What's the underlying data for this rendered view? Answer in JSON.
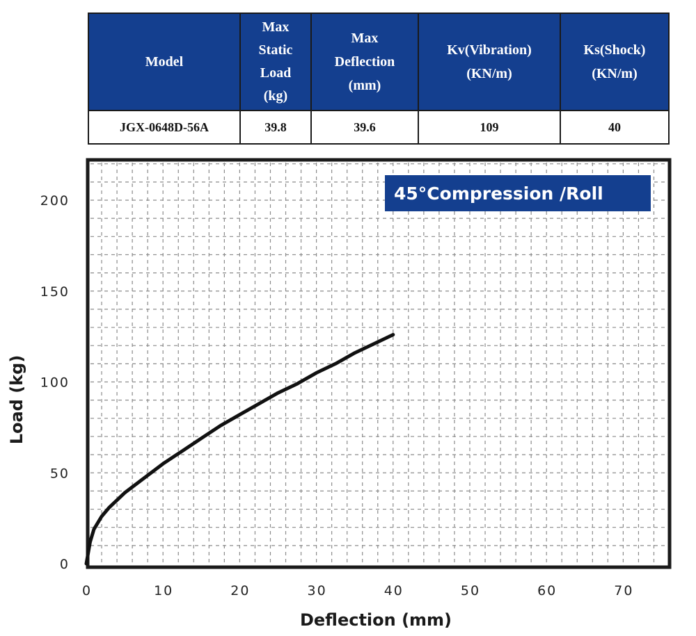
{
  "spec_table": {
    "headers": [
      "Model",
      "Max\nStatic\nLoad\n(kg)",
      "Max\nDeflection\n(mm)",
      "Kv(Vibration)\n(KN/m)",
      "Ks(Shock)\n(KN/m)"
    ],
    "row": [
      "JGX-0648D-56A",
      "39.8",
      "39.6",
      "109",
      "40"
    ]
  },
  "chart_data": {
    "type": "line",
    "title": "",
    "annotation": "45°Compression /Roll",
    "xlabel": "Deflection (mm)",
    "ylabel": "Load (kg)",
    "xlim": [
      0,
      76
    ],
    "ylim": [
      0,
      220
    ],
    "x_ticks": [
      "0",
      "10",
      "20",
      "30",
      "40",
      "50",
      "60",
      "70"
    ],
    "y_ticks": [
      "0",
      "50",
      "100",
      "150",
      "200"
    ],
    "grid": true,
    "series": [
      {
        "x": [
          0,
          0.5,
          1,
          2,
          3,
          5,
          7.5,
          10,
          12.5,
          15,
          17.5,
          20,
          22.5,
          25,
          27.5,
          30,
          32.5,
          35,
          37.5,
          40
        ],
        "y": [
          0,
          12,
          19,
          26,
          31,
          39,
          47,
          55,
          62,
          69,
          76,
          82,
          88,
          94,
          99,
          105,
          110,
          116,
          121,
          126
        ]
      }
    ],
    "colors": {
      "line": "#111111",
      "annotation_bg": "#143f8f",
      "grid": "#8a8a8a",
      "frame": "#1a1a1a"
    }
  }
}
